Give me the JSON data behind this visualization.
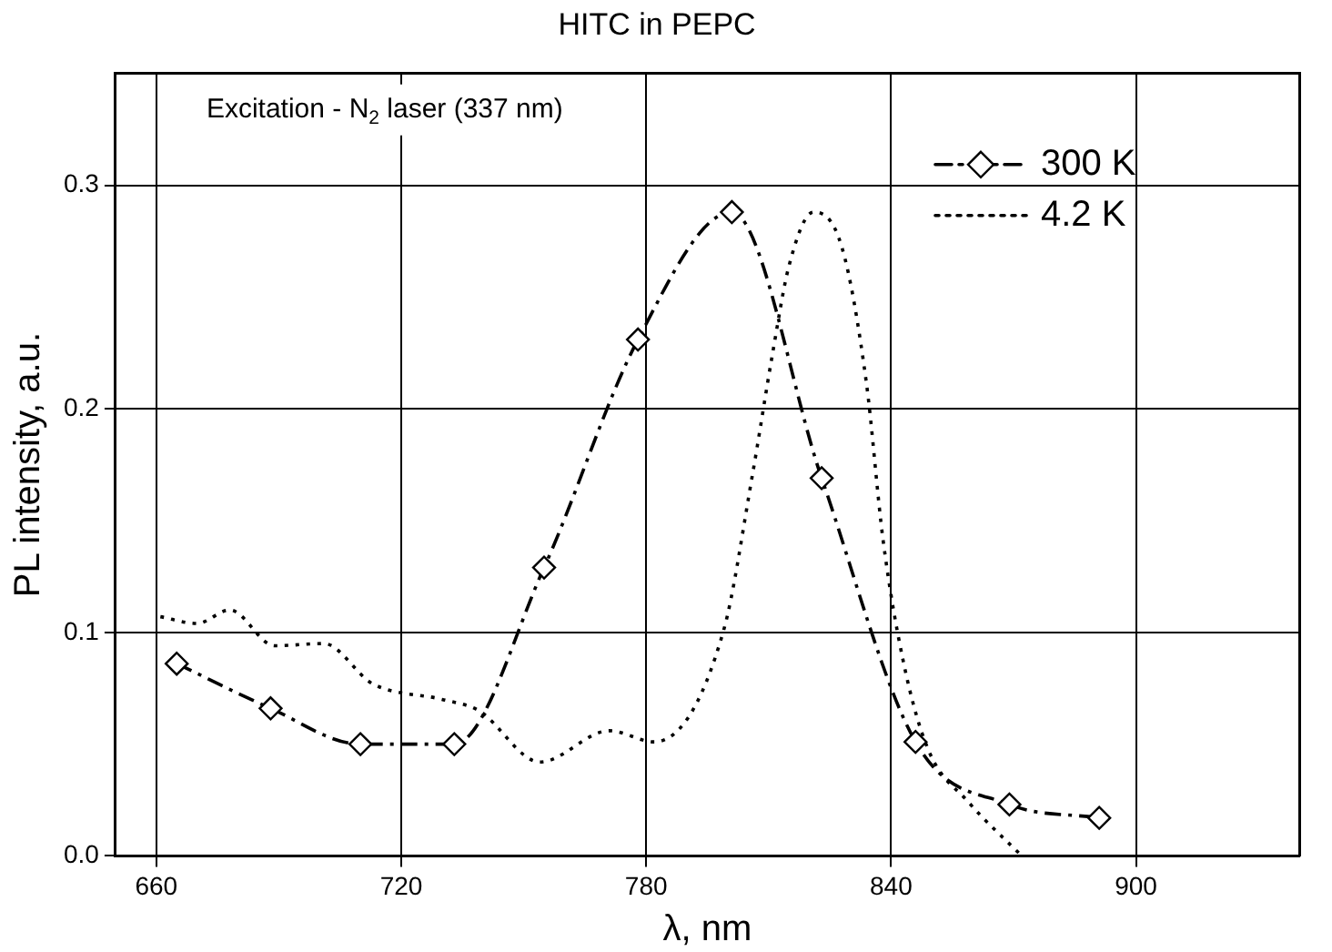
{
  "chart_data": {
    "type": "line",
    "title": "HITC in PEPC",
    "xlabel": "λ, nm",
    "ylabel": "PL intensity, a.u.",
    "annotations": [
      "Excitation - N$_{2}$ laser (337 nm)"
    ],
    "xlim": [
      650,
      940
    ],
    "xticks": [
      660,
      720,
      780,
      840,
      900
    ],
    "ylim": [
      0,
      0.35
    ],
    "yticks": [
      {
        "value": 0,
        "label": "0.0"
      },
      {
        "value": 0.1,
        "label": "0.1"
      },
      {
        "value": 0.2,
        "label": "0.2"
      },
      {
        "value": 0.3,
        "label": "0.3"
      }
    ],
    "grid": true,
    "legend": "top right",
    "series": [
      {
        "name": "300 K",
        "color": "#000000",
        "marker": "diamond",
        "line_style": "dashed",
        "x": [
          665,
          688,
          710,
          733,
          755,
          778,
          801,
          823,
          846,
          869,
          891
        ],
        "values": [
          0.086,
          0.066,
          0.05,
          0.05,
          0.129,
          0.231,
          0.288,
          0.169,
          0.051,
          0.023,
          0.017
        ]
      },
      {
        "name": "4.2 K",
        "color": "#000000",
        "marker": "none",
        "line_style": "dotted",
        "x": [
          661,
          670,
          678,
          689,
          701,
          713,
          730,
          739,
          754,
          771,
          782,
          799,
          806,
          811,
          815,
          821,
          828,
          834,
          838,
          843,
          849,
          859,
          872
        ],
        "values": [
          0.107,
          0.104,
          0.11,
          0.094,
          0.095,
          0.077,
          0.07,
          0.065,
          0.042,
          0.056,
          0.051,
          0.101,
          0.17,
          0.225,
          0.264,
          0.288,
          0.272,
          0.211,
          0.142,
          0.087,
          0.048,
          0.024,
          0
        ]
      }
    ]
  }
}
